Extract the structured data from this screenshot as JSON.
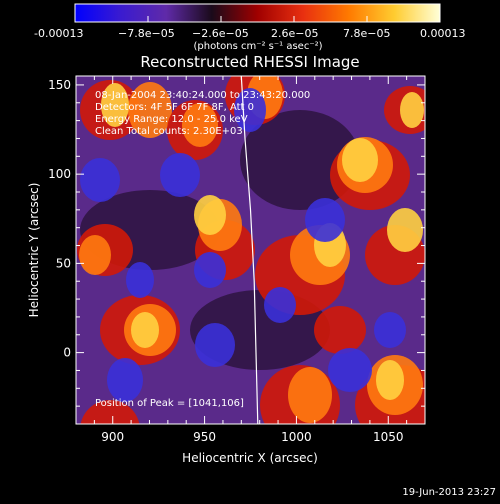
{
  "colorbar": {
    "tick_labels": [
      "-0.00013",
      "−7.8e−05",
      "−2.6e−05",
      "2.6e−05",
      "7.8e−05",
      "0.00013"
    ],
    "units_label": "(photons cm⁻² s⁻¹ asec⁻²)",
    "range": [
      -0.00013,
      0.00013
    ],
    "colors": [
      "#0000ff",
      "#3a1bd0",
      "#5f2aa8",
      "#1a0a1a",
      "#a00000",
      "#e83010",
      "#ff7a00",
      "#ffcc30",
      "#ffffd8"
    ]
  },
  "chart_data": {
    "type": "heatmap",
    "title": "Reconstructed RHESSI Image",
    "xlabel": "Heliocentric X (arcsec)",
    "ylabel": "Heliocentric Y (arcsec)",
    "xlim": [
      880,
      1070
    ],
    "ylim": [
      -40,
      155
    ],
    "x_ticks": [
      900,
      950,
      1000,
      1050
    ],
    "y_ticks": [
      0,
      50,
      100,
      150
    ],
    "x_tick_labels": [
      "900",
      "950",
      "1000",
      "1050"
    ],
    "y_tick_labels": [
      "0",
      "50",
      "100",
      "150"
    ],
    "annotations": [
      "08-Jan-2004 23:40:24.000 to 23:43:20.000",
      "Detectors: 4F 5F 6F 7F 8F, Att 0",
      "Energy Range: 12.0 - 25.0 keV",
      "Clean    Total counts: 2.30E+03"
    ],
    "peak_label": "Position of Peak = [1041,106]",
    "peak_position": [
      1041,
      106
    ],
    "limb": [
      [
        970,
        155
      ],
      [
        972,
        120
      ],
      [
        975,
        80
      ],
      [
        977,
        40
      ],
      [
        978,
        0
      ],
      [
        979,
        -40
      ]
    ]
  },
  "footer": {
    "timestamp": "19-Jun-2013 23:27"
  }
}
